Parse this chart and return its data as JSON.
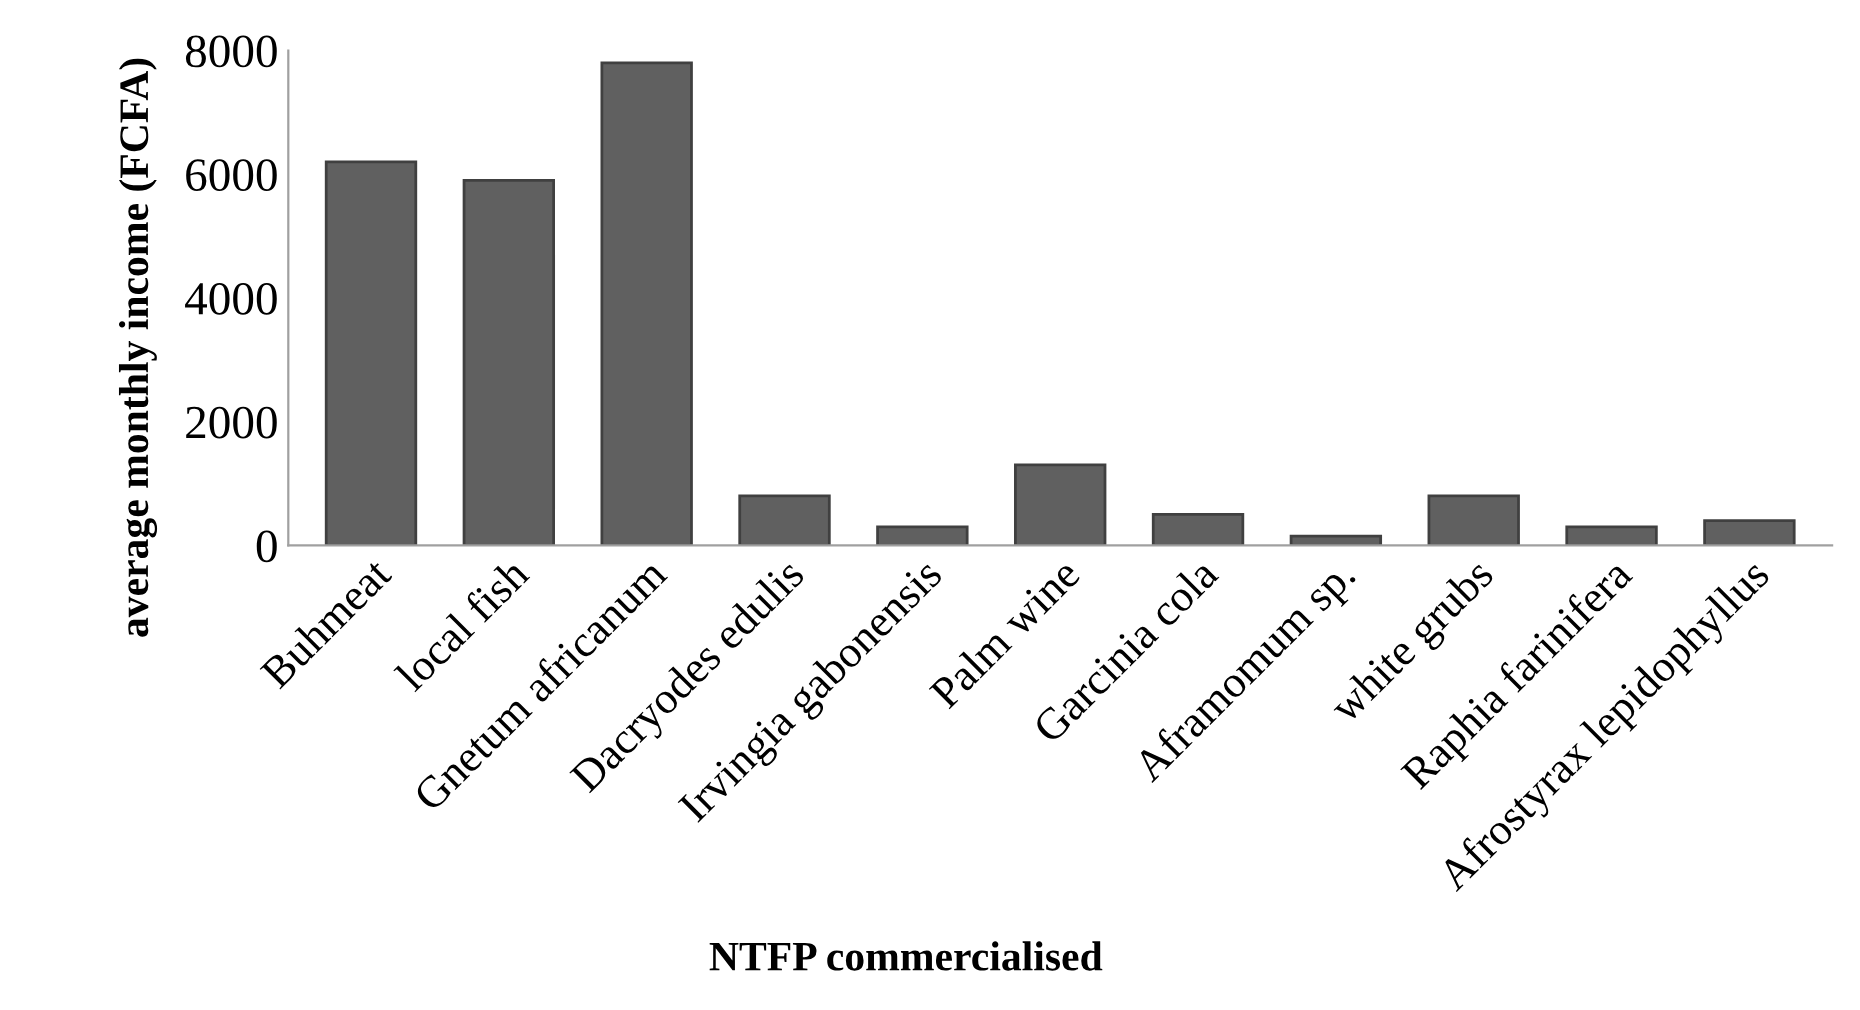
{
  "chart_data": {
    "type": "bar",
    "xlabel": "NTFP commercialised",
    "ylabel": "average monthly income (FCFA)",
    "categories": [
      "Buhmeat",
      "local fish",
      "Gnetum africanum",
      "Dacryodes edulis",
      "Irvingia gabonensis",
      "Palm wine",
      "Garcinia cola",
      "Aframomum sp.",
      "white grubs",
      "Raphia farinifera",
      "Afrostyrax lepidophyllus"
    ],
    "values": [
      6200,
      5900,
      7800,
      800,
      300,
      1300,
      500,
      150,
      800,
      300,
      400
    ],
    "color": "#606060",
    "ylim": [
      0,
      8000
    ],
    "yticks": [
      0,
      2000,
      4000,
      6000,
      8000
    ],
    "grid": false,
    "legend": false
  }
}
